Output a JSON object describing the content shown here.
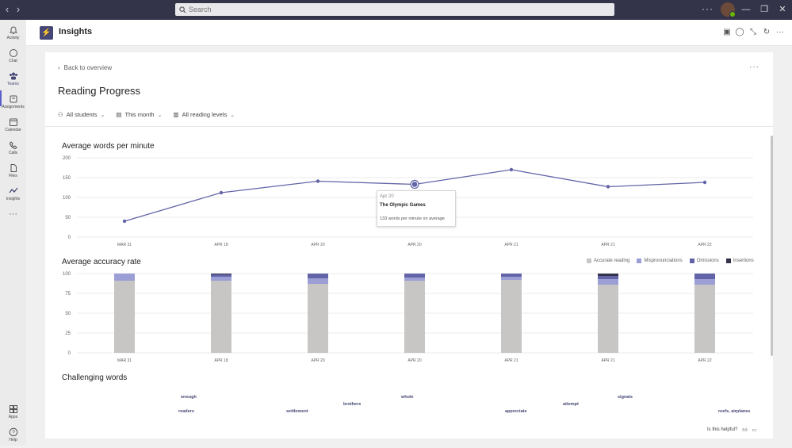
{
  "search": {
    "placeholder": "Search"
  },
  "rail": {
    "items": [
      {
        "label": "Activity",
        "icon": "bell-icon"
      },
      {
        "label": "Chat",
        "icon": "chat-icon"
      },
      {
        "label": "Teams",
        "icon": "teams-icon"
      },
      {
        "label": "Assignments",
        "icon": "assignments-icon"
      },
      {
        "label": "Calendar",
        "icon": "calendar-icon"
      },
      {
        "label": "Calls",
        "icon": "phone-icon"
      },
      {
        "label": "Files",
        "icon": "file-icon"
      },
      {
        "label": "Insights",
        "icon": "insights-icon"
      }
    ],
    "apps_label": "Apps",
    "help_label": "Help",
    "active": "Teams"
  },
  "app": {
    "title": "Insights"
  },
  "page": {
    "back_label": "Back to overview",
    "title": "Reading Progress",
    "filters": [
      "All students",
      "This month",
      "All reading levels"
    ]
  },
  "wpm_chart": {
    "title": "Average words per minute",
    "tooltip": {
      "date": "Apr 20",
      "title": "The Olympic Games",
      "desc": "133 words per minute on average"
    }
  },
  "accuracy_chart": {
    "title": "Average accuracy rate",
    "legend": [
      "Accurate reading",
      "Mispronunciations",
      "Omissions",
      "Insertions"
    ]
  },
  "words": {
    "title": "Challenging words",
    "items": [
      "enough",
      "whole",
      "signals",
      "brothers",
      "attempt",
      "readers",
      "settlement",
      "appreciate",
      "reefs, airplanes"
    ]
  },
  "footer": {
    "helpful_label": "Is this helpful?"
  },
  "colors": {
    "line": "#6264a7",
    "accurate": "#c8c6c4",
    "mispronunciations": "#9c9ed6",
    "omissions": "#6264a7",
    "insertions": "#33344a",
    "titlebar": "#33344a"
  },
  "chart_data": [
    {
      "type": "line",
      "title": "Average words per minute",
      "categories": [
        "MAR 31",
        "APR 18",
        "APR 20",
        "APR 20",
        "APR 21",
        "APR 21",
        "APR 22"
      ],
      "series": [
        {
          "values": [
            40,
            112,
            141,
            133,
            170,
            127,
            138
          ]
        }
      ],
      "ylim": [
        0,
        200
      ],
      "yticks": [
        0,
        50,
        100,
        150,
        200
      ],
      "grid": true,
      "highlighted_index": 3
    },
    {
      "type": "bar",
      "stacked": true,
      "title": "Average accuracy rate",
      "categories": [
        "MAR 31",
        "APR 18",
        "APR 20",
        "APR 20",
        "APR 21",
        "APR 21",
        "APR 22"
      ],
      "series": [
        {
          "name": "Accurate reading",
          "values": [
            91,
            91,
            87,
            91,
            92,
            86,
            86
          ]
        },
        {
          "name": "Mispronunciations",
          "values": [
            9,
            5,
            7,
            4,
            4,
            7,
            7
          ]
        },
        {
          "name": "Omissions",
          "values": [
            0,
            3,
            6,
            5,
            4,
            4,
            7
          ]
        },
        {
          "name": "Insertions",
          "values": [
            0,
            1,
            0,
            0,
            0,
            3,
            0
          ]
        }
      ],
      "ylim": [
        0,
        100
      ],
      "yticks": [
        0,
        25,
        50,
        75,
        100
      ],
      "grid": true,
      "legend_position": "top-right"
    }
  ]
}
